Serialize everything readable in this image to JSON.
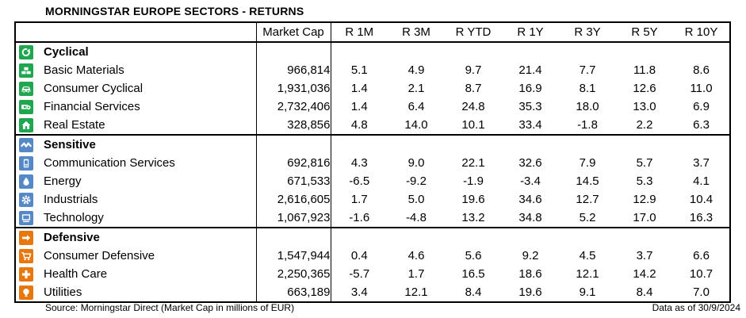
{
  "title": "MORNINGSTAR EUROPE SECTORS - RETURNS",
  "footer": {
    "source": "Source: Morningstar Direct (Market Cap in millions of EUR)",
    "data_as_of": "Data as of 30/9/2024"
  },
  "colors": {
    "cyclical_green": "#1FA750",
    "sensitive_blue": "#5588C7",
    "defensive_orange": "#E8770E",
    "border": "#000000",
    "text": "#000000"
  },
  "chart_data": {
    "type": "table",
    "title": "MORNINGSTAR EUROPE SECTORS - RETURNS",
    "columns": [
      "Market Cap",
      "R 1M",
      "R 3M",
      "R YTD",
      "R 1Y",
      "R 3Y",
      "R 5Y",
      "R 10Y"
    ],
    "groups": [
      {
        "name": "Cyclical",
        "icon": "cyclical-icon",
        "color": "#1FA750",
        "rows": [
          {
            "name": "Basic Materials",
            "icon": "basic-materials-icon",
            "market_cap": "966,814",
            "values": [
              "5.1",
              "4.9",
              "9.7",
              "21.4",
              "7.7",
              "11.8",
              "8.6"
            ]
          },
          {
            "name": "Consumer Cyclical",
            "icon": "consumer-cyclical-icon",
            "market_cap": "1,931,036",
            "values": [
              "1.4",
              "2.1",
              "8.7",
              "16.9",
              "8.1",
              "12.6",
              "11.0"
            ]
          },
          {
            "name": "Financial Services",
            "icon": "financial-services-icon",
            "market_cap": "2,732,406",
            "values": [
              "1.4",
              "6.4",
              "24.8",
              "35.3",
              "18.0",
              "13.0",
              "6.9"
            ]
          },
          {
            "name": "Real Estate",
            "icon": "real-estate-icon",
            "market_cap": "328,856",
            "values": [
              "4.8",
              "14.0",
              "10.1",
              "33.4",
              "-1.8",
              "2.2",
              "6.3"
            ]
          }
        ]
      },
      {
        "name": "Sensitive",
        "icon": "sensitive-icon",
        "color": "#5588C7",
        "rows": [
          {
            "name": "Communication Services",
            "icon": "communication-services-icon",
            "market_cap": "692,816",
            "values": [
              "4.3",
              "9.0",
              "22.1",
              "32.6",
              "7.9",
              "5.7",
              "3.7"
            ]
          },
          {
            "name": "Energy",
            "icon": "energy-icon",
            "market_cap": "671,533",
            "values": [
              "-6.5",
              "-9.2",
              "-1.9",
              "-3.4",
              "14.5",
              "5.3",
              "4.1"
            ]
          },
          {
            "name": "Industrials",
            "icon": "industrials-icon",
            "market_cap": "2,616,605",
            "values": [
              "1.7",
              "5.0",
              "19.6",
              "34.6",
              "12.7",
              "12.9",
              "10.4"
            ]
          },
          {
            "name": "Technology",
            "icon": "technology-icon",
            "market_cap": "1,067,923",
            "values": [
              "-1.6",
              "-4.8",
              "13.2",
              "34.8",
              "5.2",
              "17.0",
              "16.3"
            ]
          }
        ]
      },
      {
        "name": "Defensive",
        "icon": "defensive-icon",
        "color": "#E8770E",
        "rows": [
          {
            "name": "Consumer Defensive",
            "icon": "consumer-defensive-icon",
            "market_cap": "1,547,944",
            "values": [
              "0.4",
              "4.6",
              "5.6",
              "9.2",
              "4.5",
              "3.7",
              "6.6"
            ]
          },
          {
            "name": "Health Care",
            "icon": "health-care-icon",
            "market_cap": "2,250,365",
            "values": [
              "-5.7",
              "1.7",
              "16.5",
              "18.6",
              "12.1",
              "14.2",
              "10.7"
            ]
          },
          {
            "name": "Utilities",
            "icon": "utilities-icon",
            "market_cap": "663,189",
            "values": [
              "3.4",
              "12.1",
              "8.4",
              "19.6",
              "9.1",
              "8.4",
              "7.0"
            ]
          }
        ]
      }
    ]
  }
}
